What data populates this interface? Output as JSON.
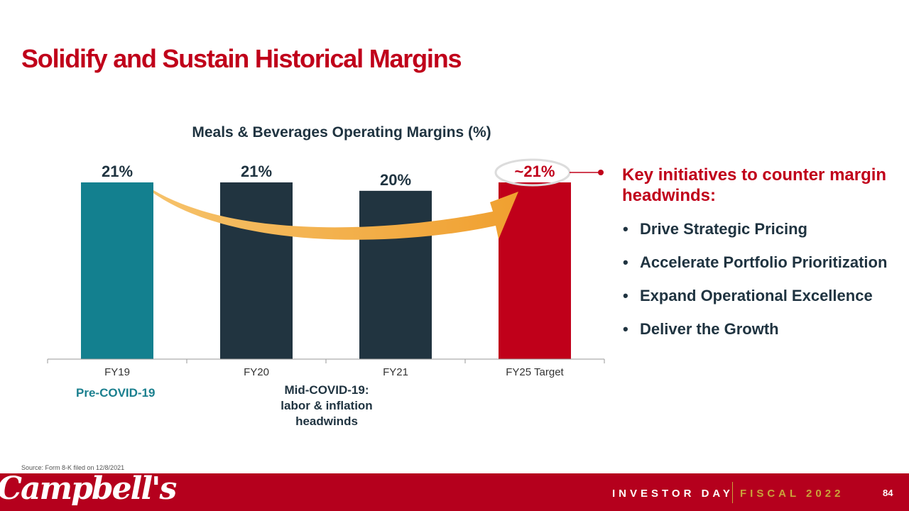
{
  "title": "Solidify and Sustain Historical Margins",
  "chart_data": {
    "type": "bar",
    "title": "Meals & Beverages Operating Margins (%)",
    "categories": [
      "FY19",
      "FY20",
      "FY21",
      "FY25 Target"
    ],
    "values": [
      21,
      21,
      20,
      21
    ],
    "value_labels": [
      "21%",
      "21%",
      "20%",
      "~21%"
    ],
    "colors": [
      "#13808f",
      "#213440",
      "#213440",
      "#c0001a"
    ],
    "ylim": [
      0,
      21
    ],
    "xlabel": "",
    "ylabel": "",
    "grid": false,
    "annotations": [
      "Pre-COVID-19",
      "Mid-COVID-19: labor & inflation headwinds"
    ]
  },
  "eras": {
    "pre": "Pre-COVID-19",
    "mid_lines": [
      "Mid-COVID-19:",
      "labor & inflation",
      "headwinds"
    ]
  },
  "initiatives": {
    "heading": "Key initiatives to counter margin headwinds:",
    "items": [
      "Drive Strategic Pricing",
      "Accelerate Portfolio Prioritization",
      "Expand Operational Excellence",
      "Deliver the Growth"
    ]
  },
  "source": "Source: Form 8-K filed on 12/8/2021",
  "footer": {
    "logo": "Campbell's",
    "event": "INVESTOR DAY",
    "fiscal": "FISCAL 2022",
    "page": "84"
  },
  "colors": {
    "brand_red": "#c0001a",
    "teal": "#13808f",
    "navy": "#213440",
    "orange_arrow": "#f0a030",
    "gold": "#c9a43b"
  }
}
